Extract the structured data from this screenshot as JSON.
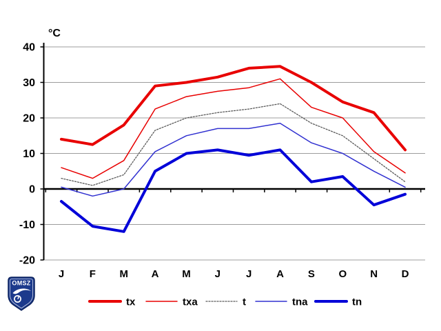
{
  "canvas": {
    "background": "#ffffff"
  },
  "logo": {
    "text": "OMSZ",
    "shield_color": "#1c3a8c",
    "border_color": "#0e245e",
    "glyph_color": "#ffffff"
  },
  "chart_data": {
    "type": "line",
    "title": "",
    "unit_label": "°C",
    "xlabel": "",
    "ylabel": "°C",
    "categories": [
      "J",
      "F",
      "M",
      "A",
      "M",
      "J",
      "J",
      "A",
      "S",
      "O",
      "N",
      "D"
    ],
    "ylim": [
      -20,
      40
    ],
    "yticks": [
      "40",
      "30",
      "20",
      "10",
      "0",
      "-10",
      "-20"
    ],
    "ytick_values": [
      40,
      30,
      20,
      10,
      0,
      -10,
      -20
    ],
    "grid": true,
    "grid_color": "#9c9c9c",
    "axis_color": "#000000",
    "legend_position": "bottom",
    "series": [
      {
        "name": "tx",
        "color": "#e80000",
        "width": 4,
        "dash": "",
        "values": [
          14,
          12.5,
          18,
          29,
          30,
          31.5,
          34,
          34.5,
          30,
          24.5,
          21.5,
          11
        ]
      },
      {
        "name": "txa",
        "color": "#e80000",
        "width": 1.5,
        "dash": "",
        "values": [
          6,
          3,
          8,
          22.5,
          26,
          27.5,
          28.5,
          31,
          23,
          20,
          10.5,
          4.5
        ]
      },
      {
        "name": "t",
        "color": "#595959",
        "width": 1.3,
        "dash": "2,2",
        "values": [
          3,
          1,
          4,
          16.5,
          20,
          21.5,
          22.5,
          24,
          18.5,
          15,
          8.5,
          2
        ]
      },
      {
        "name": "tna",
        "color": "#3030d0",
        "width": 1.5,
        "dash": "",
        "values": [
          0.5,
          -2,
          0,
          10.5,
          15,
          17,
          17,
          18.5,
          13,
          10,
          5,
          0.5
        ]
      },
      {
        "name": "tn",
        "color": "#0000d8",
        "width": 4,
        "dash": "",
        "values": [
          -3.5,
          -10.5,
          -12,
          5,
          10,
          11,
          9.5,
          11,
          2,
          3.5,
          -4.5,
          -1.5
        ]
      }
    ]
  }
}
